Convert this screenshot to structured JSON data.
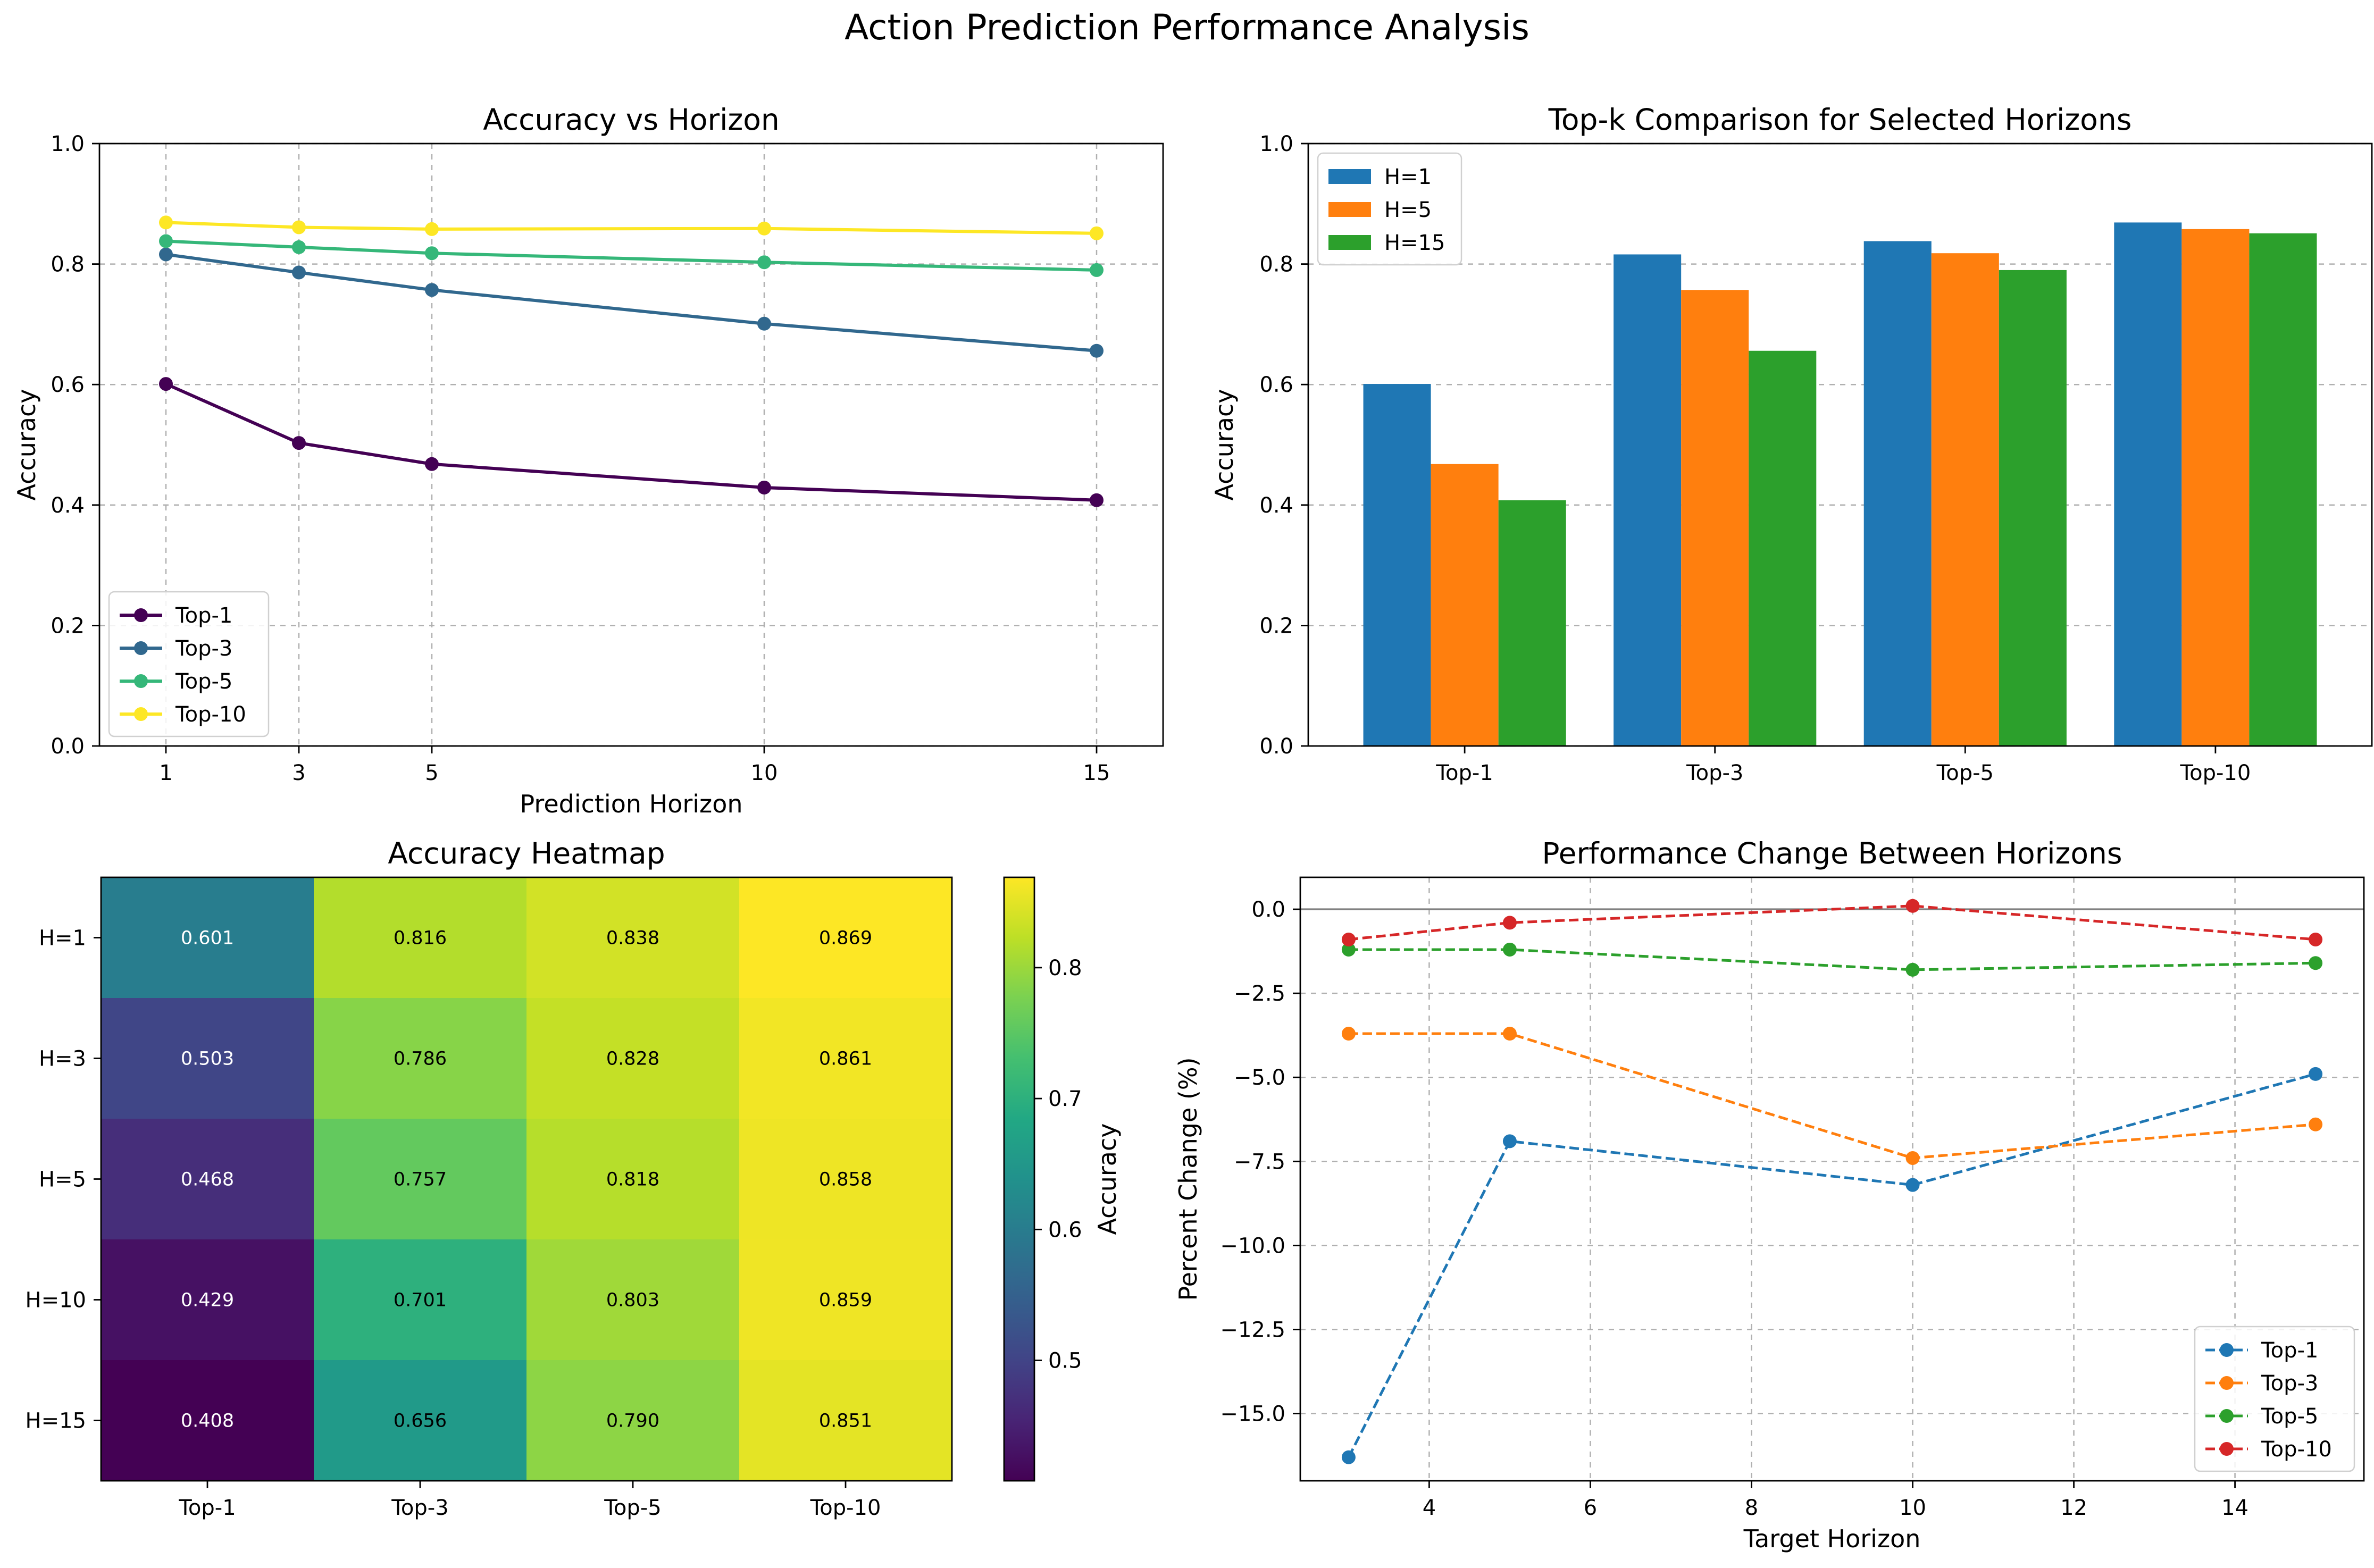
{
  "figure": {
    "suptitle": "Action Prediction Performance Analysis"
  },
  "chart_data": [
    {
      "type": "line",
      "title": "Accuracy vs Horizon",
      "xlabel": "Prediction Horizon",
      "ylabel": "Accuracy",
      "x": [
        1,
        3,
        5,
        10,
        15
      ],
      "xticks": [
        1,
        3,
        5,
        10,
        15
      ],
      "xlim": [
        0,
        16
      ],
      "ylim": [
        0,
        1
      ],
      "yticks": [
        0.0,
        0.2,
        0.4,
        0.6,
        0.8,
        1.0
      ],
      "grid": true,
      "legend": "lower-left",
      "series": [
        {
          "name": "Top-1",
          "color": "#440154",
          "values": [
            0.601,
            0.503,
            0.468,
            0.429,
            0.408
          ]
        },
        {
          "name": "Top-3",
          "color": "#31688e",
          "values": [
            0.816,
            0.786,
            0.757,
            0.701,
            0.656
          ]
        },
        {
          "name": "Top-5",
          "color": "#35b779",
          "values": [
            0.838,
            0.828,
            0.818,
            0.803,
            0.79
          ]
        },
        {
          "name": "Top-10",
          "color": "#fde725",
          "values": [
            0.869,
            0.861,
            0.858,
            0.859,
            0.851
          ]
        }
      ]
    },
    {
      "type": "bar",
      "title": "Top-k Comparison for Selected Horizons",
      "xlabel": "",
      "ylabel": "Accuracy",
      "categories": [
        "Top-1",
        "Top-3",
        "Top-5",
        "Top-10"
      ],
      "ylim": [
        0,
        1
      ],
      "yticks": [
        0.0,
        0.2,
        0.4,
        0.6,
        0.8,
        1.0
      ],
      "grid": true,
      "legend": "top-left",
      "series": [
        {
          "name": "H=1",
          "color": "#1f77b4",
          "values": [
            0.601,
            0.816,
            0.838,
            0.869
          ]
        },
        {
          "name": "H=5",
          "color": "#ff7f0e",
          "values": [
            0.468,
            0.757,
            0.818,
            0.858
          ]
        },
        {
          "name": "H=15",
          "color": "#2ca02c",
          "values": [
            0.408,
            0.656,
            0.79,
            0.851
          ]
        }
      ]
    },
    {
      "type": "heatmap",
      "title": "Accuracy Heatmap",
      "x_categories": [
        "Top-1",
        "Top-3",
        "Top-5",
        "Top-10"
      ],
      "y_categories": [
        "H=1",
        "H=3",
        "H=5",
        "H=10",
        "H=15"
      ],
      "values": [
        [
          0.601,
          0.816,
          0.838,
          0.869
        ],
        [
          0.503,
          0.786,
          0.828,
          0.861
        ],
        [
          0.468,
          0.757,
          0.818,
          0.858
        ],
        [
          0.429,
          0.701,
          0.803,
          0.859
        ],
        [
          0.408,
          0.656,
          0.79,
          0.851
        ]
      ],
      "cell_labels": [
        [
          "0.601",
          "0.816",
          "0.838",
          "0.869"
        ],
        [
          "0.503",
          "0.786",
          "0.828",
          "0.861"
        ],
        [
          "0.468",
          "0.757",
          "0.818",
          "0.858"
        ],
        [
          "0.429",
          "0.701",
          "0.803",
          "0.859"
        ],
        [
          "0.408",
          "0.656",
          "0.790",
          "0.851"
        ]
      ],
      "colormap": "viridis",
      "vmin": 0.408,
      "vmax": 0.869,
      "colorbar_label": "Accuracy",
      "colorbar_ticks": [
        0.5,
        0.6,
        0.7,
        0.8
      ]
    },
    {
      "type": "line",
      "title": "Performance Change Between Horizons",
      "xlabel": "Target Horizon",
      "ylabel": "Percent Change (%)",
      "x": [
        3,
        5,
        10,
        15
      ],
      "xticks": [
        4,
        6,
        8,
        10,
        12,
        14
      ],
      "xlim": [
        2.4,
        15.6
      ],
      "ylim": [
        -17.0,
        0.95
      ],
      "yticks": [
        0.0,
        -2.5,
        -5.0,
        -7.5,
        -10.0,
        -12.5,
        -15.0
      ],
      "ytick_labels": [
        "0.0",
        "−2.5",
        "−5.0",
        "−7.5",
        "−10.0",
        "−12.5",
        "−15.0"
      ],
      "grid": true,
      "legend": "lower-right",
      "reference_line": 0,
      "series": [
        {
          "name": "Top-1",
          "color": "#1f77b4",
          "values": [
            -16.3,
            -6.9,
            -8.2,
            -4.9
          ]
        },
        {
          "name": "Top-3",
          "color": "#ff7f0e",
          "values": [
            -3.7,
            -3.7,
            -7.4,
            -6.4
          ]
        },
        {
          "name": "Top-5",
          "color": "#2ca02c",
          "values": [
            -1.2,
            -1.2,
            -1.8,
            -1.6
          ]
        },
        {
          "name": "Top-10",
          "color": "#d62728",
          "values": [
            -0.9,
            -0.4,
            0.1,
            -0.9
          ]
        }
      ]
    }
  ]
}
